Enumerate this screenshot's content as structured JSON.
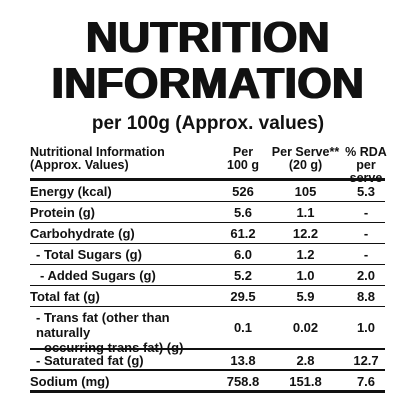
{
  "title_line1": "NUTRITION",
  "title_line2": "INFORMATION",
  "subtitle": "per 100g (Approx. values)",
  "table": {
    "headers": {
      "col0_line1": "Nutritional Information",
      "col0_line2": "(Approx. Values)",
      "col1_line1": "Per",
      "col1_line2": "100 g",
      "col2_line1": "Per Serve**",
      "col2_line2": "(20 g)",
      "col3_line1": "% RDA",
      "col3_line2": "per serve"
    },
    "rows": [
      {
        "label": "Energy (kcal)",
        "per_100g": "526",
        "per_serve": "105",
        "rda": "5.3"
      },
      {
        "label": "Protein (g)",
        "per_100g": "5.6",
        "per_serve": "1.1",
        "rda": "-"
      },
      {
        "label": "Carbohydrate (g)",
        "per_100g": "61.2",
        "per_serve": "12.2",
        "rda": "-"
      },
      {
        "label": "- Total Sugars (g)",
        "per_100g": "6.0",
        "per_serve": "1.2",
        "rda": "-"
      },
      {
        "label": "- Added Sugars (g)",
        "per_100g": "5.2",
        "per_serve": "1.0",
        "rda": "2.0"
      },
      {
        "label": "Total fat (g)",
        "per_100g": "29.5",
        "per_serve": "5.9",
        "rda": "8.8"
      },
      {
        "label_line1": "- Trans fat (other than naturally",
        "label_line2": "occurring trans fat) (g)",
        "per_100g": "0.1",
        "per_serve": "0.02",
        "rda": "1.0"
      },
      {
        "label": "- Saturated fat (g)",
        "per_100g": "13.8",
        "per_serve": "2.8",
        "rda": "12.7"
      },
      {
        "label": "Sodium (mg)",
        "per_100g": "758.8",
        "per_serve": "151.8",
        "rda": "7.6"
      }
    ]
  }
}
